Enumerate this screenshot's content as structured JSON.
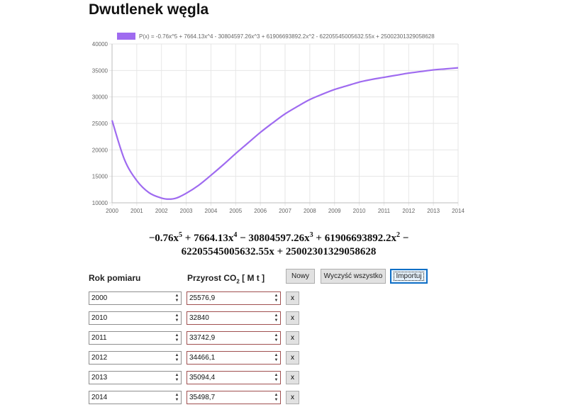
{
  "page": {
    "title": "Dwutlenek węgla"
  },
  "chart_data": {
    "type": "line",
    "legend": "P(x) = -0.76x^5 + 7664.13x^4 - 30804597.26x^3 + 61906693892.2x^2 - 62205545005632.55x + 25002301329058628",
    "legend_color": "#9f6bf0",
    "line_color": "#9f6bf0",
    "xlim": [
      2000,
      2014
    ],
    "ylim": [
      10000,
      40000
    ],
    "x_ticks": [
      "2000",
      "2001",
      "2002",
      "2003",
      "2004",
      "2005",
      "2006",
      "2007",
      "2008",
      "2009",
      "2010",
      "2011",
      "2012",
      "2013",
      "2014"
    ],
    "y_ticks": [
      "40000",
      "35000",
      "30000",
      "25000",
      "20000",
      "15000",
      "10000"
    ],
    "grid": true,
    "legend_position": "top",
    "series": [
      {
        "name": "P(x) = -0.76x^5 + 7664.13x^4 - 30804597.26x^3 + 61906693892.2x^2 - 62205545005632.55x + 25002301329058628",
        "x": [
          2000,
          2000.5,
          2001,
          2001.5,
          2002,
          2002.3,
          2002.6,
          2003,
          2003.5,
          2004,
          2004.5,
          2005,
          2005.5,
          2006,
          2006.5,
          2007,
          2007.5,
          2008,
          2008.5,
          2009,
          2009.5,
          2010,
          2010.5,
          2011,
          2011.5,
          2012,
          2012.5,
          2013,
          2013.5,
          2014
        ],
        "y": [
          25577,
          18200,
          14200,
          11900,
          10900,
          10700,
          10900,
          11800,
          13300,
          15200,
          17200,
          19300,
          21300,
          23300,
          25100,
          26800,
          28200,
          29500,
          30500,
          31400,
          32100,
          32800,
          33300,
          33700,
          34100,
          34500,
          34800,
          35100,
          35300,
          35500
        ]
      }
    ]
  },
  "formula": {
    "line1": [
      "−0.76x",
      "5",
      " + 7664.13x",
      "4",
      " − 30804597.26x",
      "3",
      " + 61906693892.2x",
      "2",
      " −"
    ],
    "line2": "62205545005632.55x + 25002301329058628"
  },
  "table": {
    "year_header": "Rok pomiaru",
    "value_header_pre": "Przyrost CO",
    "value_header_sub": "2",
    "value_header_post": " [ M t ]",
    "buttons": {
      "new": "Nowy",
      "clear": "Wyczyść wszystko",
      "import": "Importuj"
    },
    "spin_up": "▲",
    "spin_down": "▼",
    "remove_label": "x",
    "rows": [
      {
        "year": "2000",
        "value": "25576,9"
      },
      {
        "year": "2010",
        "value": "32840"
      },
      {
        "year": "2011",
        "value": "33742,9"
      },
      {
        "year": "2012",
        "value": "34466,1"
      },
      {
        "year": "2013",
        "value": "35094,4"
      },
      {
        "year": "2014",
        "value": "35498,7"
      }
    ]
  }
}
